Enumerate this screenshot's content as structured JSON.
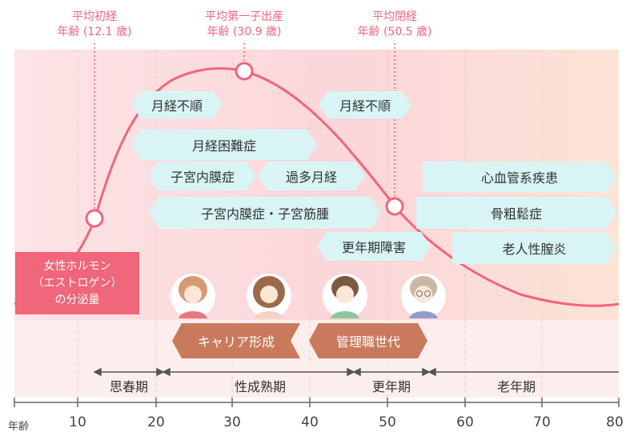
{
  "annotations": [
    {
      "line1": "平均初経",
      "line2": "年齢 (12.1 歳)"
    },
    {
      "line1": "平均第一子出産",
      "line2": "年齢 (30.9 歳)"
    },
    {
      "line1": "平均閉経",
      "line2": "年齢 (50.5 歳)"
    }
  ],
  "conditions": [
    {
      "label": "月経不順"
    },
    {
      "label": "月経困難症"
    },
    {
      "label": "子宮内膜症"
    },
    {
      "label": "過多月経"
    },
    {
      "label": "子宮内膜症・子宮筋腫"
    },
    {
      "label": "月経不順"
    },
    {
      "label": "更年期障害"
    },
    {
      "label": "心血管系疾患"
    },
    {
      "label": "骨粗鬆症"
    },
    {
      "label": "老人性膣炎"
    }
  ],
  "hormone_label": {
    "line1": "女性ホルモン",
    "line2": "（エストロゲン）",
    "line3": "の分泌量"
  },
  "roles": {
    "career": "キャリア形成",
    "management": "管理職世代"
  },
  "stages": {
    "puberty": "思春期",
    "maturity": "性成熟期",
    "menopause": "更年期",
    "senescence": "老年期"
  },
  "axis": {
    "unit": "年齢",
    "ticks": [
      "10",
      "20",
      "30",
      "40",
      "50",
      "60",
      "70",
      "80"
    ]
  },
  "colors": {
    "accent": "#f0667a",
    "condition_bg": "#d8f4f4",
    "role_bg": "#c97a5d",
    "band_light": "#fdeaea"
  },
  "avatars": [
    "young-woman-avatar",
    "thirties-woman-avatar",
    "middle-aged-woman-avatar",
    "senior-woman-avatar"
  ]
}
